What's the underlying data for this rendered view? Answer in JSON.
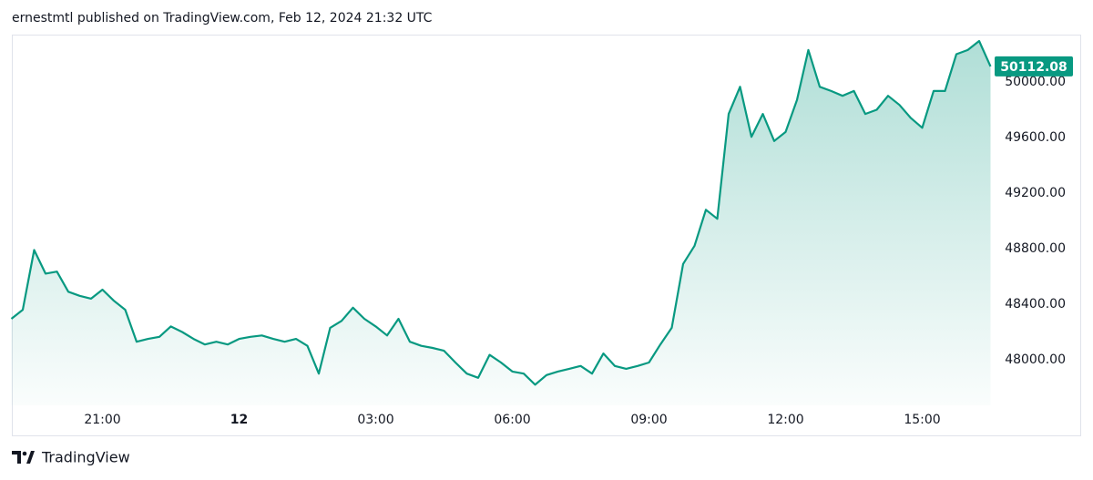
{
  "header": "ernestmtl published on TradingView.com, Feb 12, 2024 21:32 UTC",
  "footer": "TradingView",
  "chart_data": {
    "type": "area",
    "color": "#089981",
    "categories": [
      "19:00",
      "19:15",
      "19:30",
      "19:45",
      "20:00",
      "20:15",
      "20:30",
      "20:45",
      "21:00",
      "21:15",
      "21:30",
      "21:45",
      "22:00",
      "22:15",
      "22:30",
      "22:45",
      "23:00",
      "23:15",
      "23:30",
      "23:45",
      "00:00",
      "00:15",
      "00:30",
      "00:45",
      "01:00",
      "01:15",
      "01:30",
      "01:45",
      "02:00",
      "02:15",
      "02:30",
      "02:45",
      "03:00",
      "03:15",
      "03:30",
      "03:45",
      "04:00",
      "04:15",
      "04:30",
      "04:45",
      "05:00",
      "05:15",
      "05:30",
      "05:45",
      "06:00",
      "06:15",
      "06:30",
      "06:45",
      "07:00",
      "07:15",
      "07:30",
      "07:45",
      "08:00",
      "08:15",
      "08:30",
      "08:45",
      "09:00",
      "09:15",
      "09:30",
      "09:45",
      "10:00",
      "10:15",
      "10:30",
      "10:45",
      "11:00",
      "11:15",
      "11:30",
      "11:45",
      "12:00",
      "12:15",
      "12:30",
      "12:45",
      "13:00",
      "13:15",
      "13:30",
      "13:45",
      "14:00",
      "14:15",
      "14:30",
      "14:45",
      "15:00",
      "15:15",
      "15:30",
      "15:45",
      "16:00",
      "16:15",
      "16:30"
    ],
    "values": [
      48295,
      48360,
      48790,
      48620,
      48635,
      48490,
      48460,
      48440,
      48505,
      48425,
      48360,
      48130,
      48150,
      48165,
      48240,
      48200,
      48150,
      48110,
      48130,
      48110,
      48150,
      48165,
      48175,
      48150,
      48130,
      48150,
      48100,
      47900,
      48230,
      48280,
      48375,
      48295,
      48240,
      48175,
      48295,
      48130,
      48100,
      48085,
      48065,
      47980,
      47900,
      47870,
      48035,
      47980,
      47915,
      47900,
      47820,
      47890,
      47915,
      47935,
      47955,
      47900,
      48045,
      47955,
      47935,
      47955,
      47980,
      48110,
      48230,
      48690,
      48820,
      49080,
      49015,
      49770,
      49965,
      49605,
      49770,
      49575,
      49640,
      49870,
      50230,
      49965,
      49935,
      49900,
      49935,
      49770,
      49800,
      49900,
      49835,
      49740,
      49670,
      49935,
      49935,
      50200,
      50230,
      50295,
      50112.08
    ],
    "last_price_label": "50112.08",
    "xticks": [
      {
        "value": "21:00",
        "label": "21:00"
      },
      {
        "value": "00:00",
        "label": "12"
      },
      {
        "value": "03:00",
        "label": "03:00"
      },
      {
        "value": "06:00",
        "label": "06:00"
      },
      {
        "value": "09:00",
        "label": "09:00"
      },
      {
        "value": "12:00",
        "label": "12:00"
      },
      {
        "value": "15:00",
        "label": "15:00"
      }
    ],
    "ylim": [
      47672,
      50341
    ],
    "yticks": [
      {
        "value": 48000,
        "label": "48000.00"
      },
      {
        "value": 48400,
        "label": "48400.00"
      },
      {
        "value": 48800,
        "label": "48800.00"
      },
      {
        "value": 49200,
        "label": "49200.00"
      },
      {
        "value": 49600,
        "label": "49600.00"
      },
      {
        "value": 50000,
        "label": "50000.00"
      }
    ],
    "grid": false
  }
}
